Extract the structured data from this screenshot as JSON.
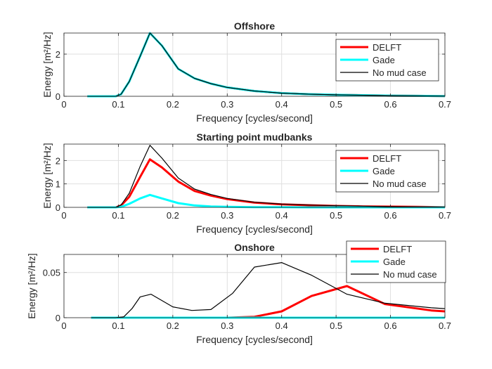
{
  "chart_data": [
    {
      "type": "line",
      "title": "Offshore",
      "xlabel": "Frequency [cycles/second]",
      "ylabel": "Energy [m²/Hz]",
      "xlim": [
        0,
        0.7
      ],
      "ylim": [
        0,
        3
      ],
      "xticks": [
        "0",
        "0.1",
        "0.2",
        "0.3",
        "0.4",
        "0.5",
        "0.6",
        "0.7"
      ],
      "xtick_values": [
        0,
        0.1,
        0.2,
        0.3,
        0.4,
        0.5,
        0.6,
        0.7
      ],
      "yticks": [
        "0",
        "2"
      ],
      "ytick_values": [
        0,
        2
      ],
      "grid": true,
      "legend_position": "top-right",
      "series": [
        {
          "name": "DELFT",
          "color": "#ff0000",
          "x": [
            0.043,
            0.095,
            0.105,
            0.12,
            0.14,
            0.158,
            0.18,
            0.21,
            0.24,
            0.27,
            0.3,
            0.35,
            0.4,
            0.45,
            0.5,
            0.55,
            0.6,
            0.65,
            0.7
          ],
          "y": [
            0,
            0,
            0.1,
            0.7,
            1.9,
            3.0,
            2.4,
            1.3,
            0.85,
            0.6,
            0.42,
            0.25,
            0.15,
            0.1,
            0.07,
            0.05,
            0.03,
            0.02,
            0.01
          ]
        },
        {
          "name": "Gade",
          "color": "#00ffff",
          "x": [
            0.043,
            0.095,
            0.105,
            0.12,
            0.14,
            0.158,
            0.18,
            0.21,
            0.24,
            0.27,
            0.3,
            0.35,
            0.4,
            0.45,
            0.5,
            0.55,
            0.6,
            0.65,
            0.7
          ],
          "y": [
            0,
            0,
            0.1,
            0.7,
            1.9,
            3.0,
            2.4,
            1.3,
            0.85,
            0.6,
            0.42,
            0.25,
            0.15,
            0.1,
            0.07,
            0.05,
            0.03,
            0.02,
            0.01
          ]
        },
        {
          "name": "No mud case",
          "color": "#000000",
          "x": [
            0.043,
            0.095,
            0.105,
            0.12,
            0.14,
            0.158,
            0.18,
            0.21,
            0.24,
            0.27,
            0.3,
            0.35,
            0.4,
            0.45,
            0.5,
            0.55,
            0.6,
            0.65,
            0.7
          ],
          "y": [
            0,
            0,
            0.1,
            0.7,
            1.9,
            3.0,
            2.4,
            1.3,
            0.85,
            0.6,
            0.42,
            0.25,
            0.15,
            0.1,
            0.07,
            0.05,
            0.03,
            0.02,
            0.01
          ]
        }
      ]
    },
    {
      "type": "line",
      "title": "Starting point mudbanks",
      "xlabel": "Frequency [cycles/second]",
      "ylabel": "Energy [m²/Hz]",
      "xlim": [
        0,
        0.7
      ],
      "ylim": [
        0,
        2.7
      ],
      "xticks": [
        "0",
        "0.1",
        "0.2",
        "0.3",
        "0.4",
        "0.5",
        "0.6",
        "0.7"
      ],
      "xtick_values": [
        0,
        0.1,
        0.2,
        0.3,
        0.4,
        0.5,
        0.6,
        0.7
      ],
      "yticks": [
        "0",
        "1",
        "2"
      ],
      "ytick_values": [
        0,
        1,
        2
      ],
      "grid": true,
      "legend_position": "top-right",
      "series": [
        {
          "name": "DELFT",
          "color": "#ff0000",
          "x": [
            0.043,
            0.095,
            0.105,
            0.12,
            0.14,
            0.158,
            0.18,
            0.21,
            0.24,
            0.27,
            0.3,
            0.35,
            0.4,
            0.45,
            0.5,
            0.55,
            0.6,
            0.65,
            0.7
          ],
          "y": [
            0,
            0,
            0.08,
            0.45,
            1.3,
            2.05,
            1.7,
            1.1,
            0.7,
            0.5,
            0.35,
            0.2,
            0.13,
            0.09,
            0.06,
            0.04,
            0.03,
            0.02,
            0.01
          ]
        },
        {
          "name": "Gade",
          "color": "#00ffff",
          "x": [
            0.043,
            0.095,
            0.105,
            0.12,
            0.14,
            0.158,
            0.18,
            0.21,
            0.24,
            0.27,
            0.3,
            0.35,
            0.4,
            0.45,
            0.5,
            0.55,
            0.6,
            0.65,
            0.7
          ],
          "y": [
            0,
            0,
            0.02,
            0.15,
            0.38,
            0.53,
            0.38,
            0.18,
            0.08,
            0.04,
            0.02,
            0.01,
            0.005,
            0,
            0,
            0,
            0,
            0,
            0
          ]
        },
        {
          "name": "No mud case",
          "color": "#000000",
          "x": [
            0.043,
            0.095,
            0.105,
            0.12,
            0.14,
            0.158,
            0.18,
            0.21,
            0.24,
            0.27,
            0.3,
            0.35,
            0.4,
            0.45,
            0.5,
            0.55,
            0.6,
            0.65,
            0.7
          ],
          "y": [
            0,
            0,
            0.1,
            0.6,
            1.75,
            2.65,
            2.1,
            1.25,
            0.78,
            0.55,
            0.38,
            0.22,
            0.14,
            0.1,
            0.07,
            0.05,
            0.03,
            0.02,
            0.01
          ]
        }
      ]
    },
    {
      "type": "line",
      "title": "Onshore",
      "xlabel": "Frequency [cycles/second]",
      "ylabel": "Energy [m²/Hz]",
      "xlim": [
        0,
        0.7
      ],
      "ylim": [
        0,
        0.07
      ],
      "xticks": [
        "0",
        "0.1",
        "0.2",
        "0.3",
        "0.4",
        "0.5",
        "0.6",
        "0.7"
      ],
      "xtick_values": [
        0,
        0.1,
        0.2,
        0.3,
        0.4,
        0.5,
        0.6,
        0.7
      ],
      "yticks": [
        "0",
        "0.05"
      ],
      "ytick_values": [
        0,
        0.05
      ],
      "grid": true,
      "legend_position": "top-right",
      "series": [
        {
          "name": "DELFT",
          "color": "#ff0000",
          "x": [
            0.05,
            0.1,
            0.2,
            0.3,
            0.35,
            0.4,
            0.455,
            0.52,
            0.59,
            0.675,
            0.7
          ],
          "y": [
            0,
            0,
            0,
            0,
            0.001,
            0.007,
            0.024,
            0.035,
            0.015,
            0.008,
            0.007
          ]
        },
        {
          "name": "Gade",
          "color": "#00ffff",
          "x": [
            0.05,
            0.1,
            0.2,
            0.3,
            0.4,
            0.5,
            0.6,
            0.7
          ],
          "y": [
            0,
            0,
            0,
            0,
            0,
            0,
            0,
            0
          ]
        },
        {
          "name": "No mud case",
          "color": "#000000",
          "x": [
            0.05,
            0.095,
            0.11,
            0.125,
            0.14,
            0.16,
            0.2,
            0.235,
            0.27,
            0.31,
            0.35,
            0.4,
            0.455,
            0.52,
            0.59,
            0.675,
            0.7
          ],
          "y": [
            0,
            0,
            0.001,
            0.01,
            0.023,
            0.026,
            0.012,
            0.008,
            0.009,
            0.027,
            0.056,
            0.061,
            0.047,
            0.026,
            0.016,
            0.011,
            0.01
          ]
        }
      ]
    }
  ]
}
